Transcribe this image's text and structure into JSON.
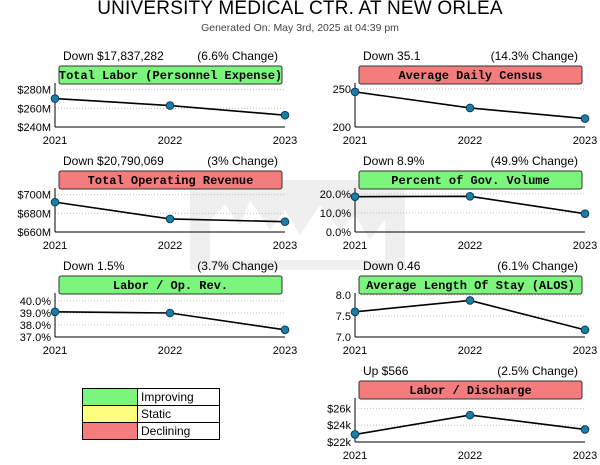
{
  "page": {
    "title": "UNIVERSITY MEDICAL CTR. AT NEW ORLEA",
    "generated": "Generated On: May 3rd, 2025 at 04:39 pm"
  },
  "colors": {
    "improving": "#7cf57c",
    "static": "#ffff80",
    "declining": "#f57c7c",
    "line": "#000000",
    "marker": "#1a7ea6",
    "grid": "#c0c0c0"
  },
  "legend": [
    {
      "label": "Improving",
      "status": "improving"
    },
    {
      "label": "Static",
      "status": "static"
    },
    {
      "label": "Declining",
      "status": "declining"
    }
  ],
  "chart_data": [
    {
      "type": "line",
      "title": "Total Labor (Personnel Expense)",
      "status": "improving",
      "change_amount": "Down $17,837,282",
      "change_pct": "(6.6% Change)",
      "categories": [
        "2021",
        "2022",
        "2023"
      ],
      "values": [
        270.5,
        263.0,
        252.7
      ],
      "ylim": [
        240,
        285
      ],
      "yticks": [
        240,
        260,
        280
      ],
      "ytick_labels": [
        "$240M",
        "$260M",
        "$280M"
      ]
    },
    {
      "type": "line",
      "title": "Average Daily Census",
      "status": "declining",
      "change_amount": "Down 35.1",
      "change_pct": "(14.3% Change)",
      "categories": [
        "2021",
        "2022",
        "2023"
      ],
      "values": [
        246,
        225,
        211
      ],
      "ylim": [
        200,
        255
      ],
      "yticks": [
        200,
        250
      ],
      "ytick_labels": [
        "200",
        "250"
      ]
    },
    {
      "type": "line",
      "title": "Total Operating Revenue",
      "status": "declining",
      "change_amount": "Down $20,790,069",
      "change_pct": "(3% Change)",
      "categories": [
        "2021",
        "2022",
        "2023"
      ],
      "values": [
        692,
        674,
        671
      ],
      "ylim": [
        660,
        705
      ],
      "yticks": [
        660,
        680,
        700
      ],
      "ytick_labels": [
        "$660M",
        "$680M",
        "$700M"
      ]
    },
    {
      "type": "line",
      "title": "Percent of Gov. Volume",
      "status": "improving",
      "change_amount": "Down 8.9%",
      "change_pct": "(49.9% Change)",
      "categories": [
        "2021",
        "2022",
        "2023"
      ],
      "values": [
        18.5,
        18.7,
        9.6
      ],
      "ylim": [
        0,
        22
      ],
      "yticks": [
        0,
        10,
        20
      ],
      "ytick_labels": [
        "0.0%",
        "10.0%",
        "20.0%"
      ]
    },
    {
      "type": "line",
      "title": "Labor / Op. Rev.",
      "status": "improving",
      "change_amount": "Down 1.5%",
      "change_pct": "(3.7% Change)",
      "categories": [
        "2021",
        "2022",
        "2023"
      ],
      "values": [
        39.1,
        39.0,
        37.6
      ],
      "ylim": [
        37,
        40.5
      ],
      "yticks": [
        37,
        38,
        39,
        40
      ],
      "ytick_labels": [
        "37.0%",
        "38.0%",
        "39.0%",
        "40.0%"
      ]
    },
    {
      "type": "line",
      "title": "Average Length Of Stay (ALOS)",
      "status": "improving",
      "change_amount": "Down 0.46",
      "change_pct": "(6.1% Change)",
      "categories": [
        "2021",
        "2022",
        "2023"
      ],
      "values": [
        7.6,
        7.87,
        7.17
      ],
      "ylim": [
        7.0,
        8.0
      ],
      "yticks": [
        7.0,
        7.5,
        8.0
      ],
      "ytick_labels": [
        "7.0",
        "7.5",
        "8.0"
      ]
    },
    {
      "type": "line",
      "title": "Labor / Discharge",
      "status": "declining",
      "change_amount": "Up $566",
      "change_pct": "(2.5% Change)",
      "categories": [
        "2021",
        "2022",
        "2023"
      ],
      "values": [
        22.9,
        25.2,
        23.5
      ],
      "ylim": [
        22,
        27
      ],
      "yticks": [
        22,
        24,
        26
      ],
      "ytick_labels": [
        "$22k",
        "$24k",
        "$26k"
      ]
    }
  ]
}
